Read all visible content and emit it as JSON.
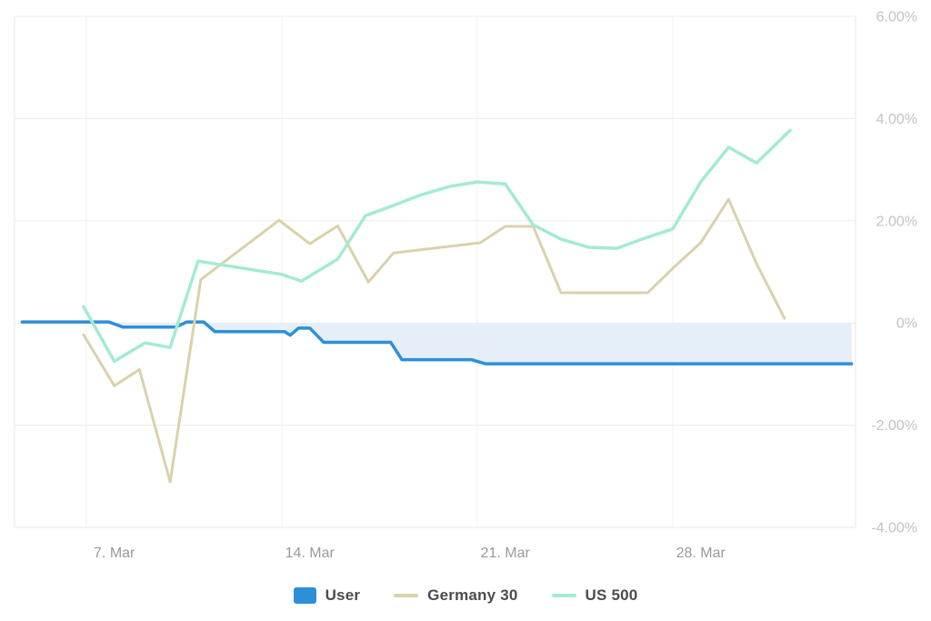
{
  "chart_data": {
    "type": "line",
    "title": "",
    "x_axis": {
      "unit": "date (March)",
      "tick_labels": [
        "7. Mar",
        "14. Mar",
        "21. Mar",
        "28. Mar"
      ],
      "tick_label_days": [
        7,
        14,
        21,
        28
      ],
      "gridline_days": [
        6,
        13,
        20,
        27
      ]
    },
    "y_axis": {
      "tick_values": [
        6,
        4,
        2,
        0,
        -2,
        -4
      ],
      "tick_labels": [
        "6.00%",
        "4.00%",
        "2.00%",
        "0%",
        "-2.00%",
        "-4.00%"
      ],
      "range": [
        -4.3,
        6.0
      ],
      "unit": "percent"
    },
    "grid": true,
    "legend_position": "bottom",
    "series": [
      {
        "name": "User",
        "type": "area",
        "color": "#2e8fd8",
        "fill_color": "#e6eff9",
        "marker": "rect",
        "points": [
          [
            3.7,
            0.02
          ],
          [
            6.8,
            0.02
          ],
          [
            7.3,
            -0.08
          ],
          [
            9.2,
            -0.08
          ],
          [
            9.6,
            0.02
          ],
          [
            10.2,
            0.02
          ],
          [
            10.6,
            -0.17
          ],
          [
            13.1,
            -0.17
          ],
          [
            13.3,
            -0.24
          ],
          [
            13.6,
            -0.1
          ],
          [
            14.0,
            -0.1
          ],
          [
            14.5,
            -0.38
          ],
          [
            16.9,
            -0.38
          ],
          [
            17.3,
            -0.72
          ],
          [
            19.8,
            -0.72
          ],
          [
            20.3,
            -0.8
          ],
          [
            33.4,
            -0.8
          ]
        ]
      },
      {
        "name": "Germany 30",
        "type": "line",
        "color": "#d9d2ab",
        "marker": "line",
        "points": [
          [
            5.9,
            -0.23
          ],
          [
            7.0,
            -1.23
          ],
          [
            7.9,
            -0.91
          ],
          [
            9.0,
            -3.11
          ],
          [
            10.1,
            0.85
          ],
          [
            12.9,
            2.01
          ],
          [
            14.0,
            1.55
          ],
          [
            15.0,
            1.9
          ],
          [
            16.1,
            0.8
          ],
          [
            17.0,
            1.37
          ],
          [
            20.1,
            1.57
          ],
          [
            21.0,
            1.89
          ],
          [
            22.0,
            1.89
          ],
          [
            23.0,
            0.59
          ],
          [
            26.1,
            0.59
          ],
          [
            27.0,
            1.07
          ],
          [
            28.0,
            1.57
          ],
          [
            29.0,
            2.42
          ],
          [
            30.0,
            1.16
          ],
          [
            31.0,
            0.09
          ]
        ]
      },
      {
        "name": "US 500",
        "type": "line",
        "color": "#a3ebd2",
        "marker": "line",
        "points": [
          [
            5.9,
            0.32
          ],
          [
            7.0,
            -0.75
          ],
          [
            8.1,
            -0.39
          ],
          [
            9.0,
            -0.48
          ],
          [
            10.0,
            1.21
          ],
          [
            13.0,
            0.95
          ],
          [
            13.7,
            0.82
          ],
          [
            15.0,
            1.25
          ],
          [
            16.0,
            2.1
          ],
          [
            17.0,
            2.3
          ],
          [
            18.0,
            2.51
          ],
          [
            19.0,
            2.67
          ],
          [
            20.0,
            2.76
          ],
          [
            21.0,
            2.72
          ],
          [
            22.0,
            1.92
          ],
          [
            23.0,
            1.64
          ],
          [
            24.0,
            1.48
          ],
          [
            25.0,
            1.46
          ],
          [
            26.0,
            1.66
          ],
          [
            27.0,
            1.84
          ],
          [
            28.0,
            2.76
          ],
          [
            29.0,
            3.44
          ],
          [
            30.0,
            3.13
          ],
          [
            31.2,
            3.77
          ]
        ]
      }
    ]
  },
  "colors": {
    "grid_horizontal": "#ececec",
    "grid_vertical": "#f0f0f0",
    "plot_border": "#e7e7e7",
    "y_label": "#c3c3c3",
    "x_label": "#9a9a9a",
    "legend_text": "#4c4c4c",
    "background": "#ffffff"
  }
}
